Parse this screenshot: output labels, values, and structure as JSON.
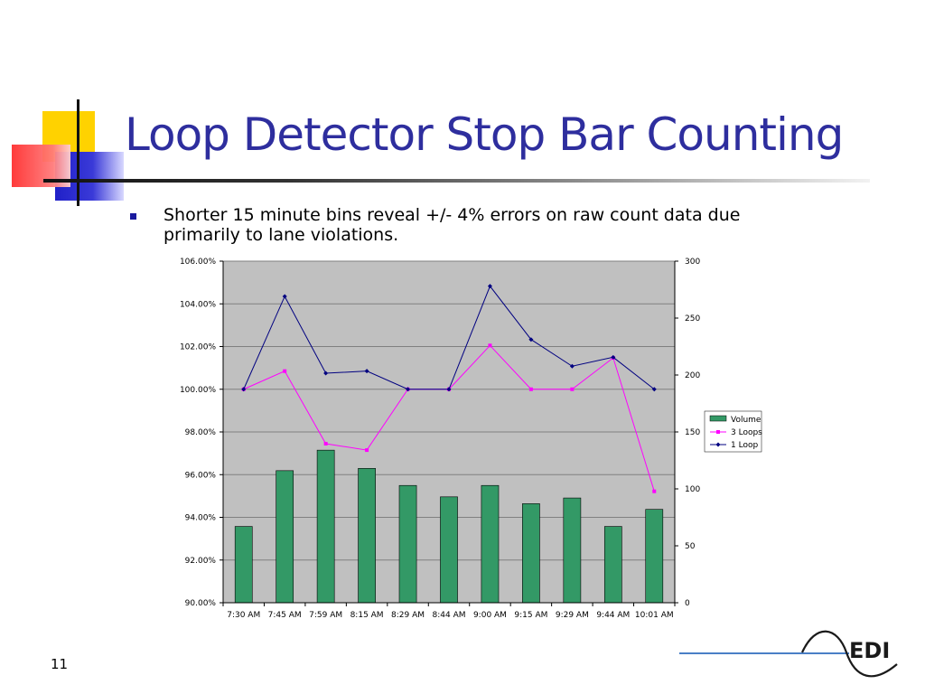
{
  "slide": {
    "title": "Loop Detector Stop Bar Counting",
    "bullet": "Shorter 15 minute bins reveal +/- 4% errors on raw count data due primarily to lane violations.",
    "page_number": "11",
    "logo_text": "EDI"
  },
  "colors": {
    "title": "#2e2e9e",
    "bar_fill": "#339966",
    "three_loops": "#ff00ff",
    "one_loop": "#000080",
    "plot_background": "#c0c0c0"
  },
  "chart_data": {
    "type": "bar",
    "categories": [
      "7:30 AM",
      "7:45 AM",
      "7:59 AM",
      "8:15 AM",
      "8:29 AM",
      "8:44 AM",
      "9:00 AM",
      "9:15 AM",
      "9:29 AM",
      "9:44 AM",
      "10:01 AM"
    ],
    "left_axis": {
      "ylim": [
        0.9,
        1.06
      ],
      "ticks": [
        0.9,
        0.92,
        0.94,
        0.96,
        0.98,
        1.0,
        1.02,
        1.04,
        1.06
      ],
      "tick_labels": [
        "90.00%",
        "92.00%",
        "94.00%",
        "96.00%",
        "98.00%",
        "100.00%",
        "102.00%",
        "104.00%",
        "106.00%"
      ]
    },
    "right_axis": {
      "ylim": [
        0,
        300
      ],
      "ticks": [
        0,
        50,
        100,
        150,
        200,
        250,
        300
      ],
      "tick_labels": [
        "0",
        "50",
        "100",
        "150",
        "200",
        "250",
        "300"
      ]
    },
    "series": [
      {
        "name": "Volume",
        "type": "bar",
        "axis": "right",
        "color": "#339966",
        "values": [
          67,
          116,
          134,
          118,
          103,
          93,
          103,
          87,
          92,
          67,
          82
        ]
      },
      {
        "name": "3 Loops",
        "type": "line",
        "axis": "left",
        "color": "#ff00ff",
        "marker": "square",
        "values": [
          1.0,
          1.0085,
          0.9745,
          0.9715,
          1.0,
          1.0,
          1.0205,
          1.0,
          1.0,
          1.0147,
          0.9522
        ]
      },
      {
        "name": "1 Loop",
        "type": "line",
        "axis": "left",
        "color": "#000080",
        "marker": "diamond",
        "values": [
          1.0,
          1.0435,
          1.0075,
          1.0085,
          1.0,
          1.0,
          1.0483,
          1.0233,
          1.0108,
          1.015,
          1.0
        ]
      }
    ],
    "grid": "horizontal",
    "legend": "right"
  }
}
